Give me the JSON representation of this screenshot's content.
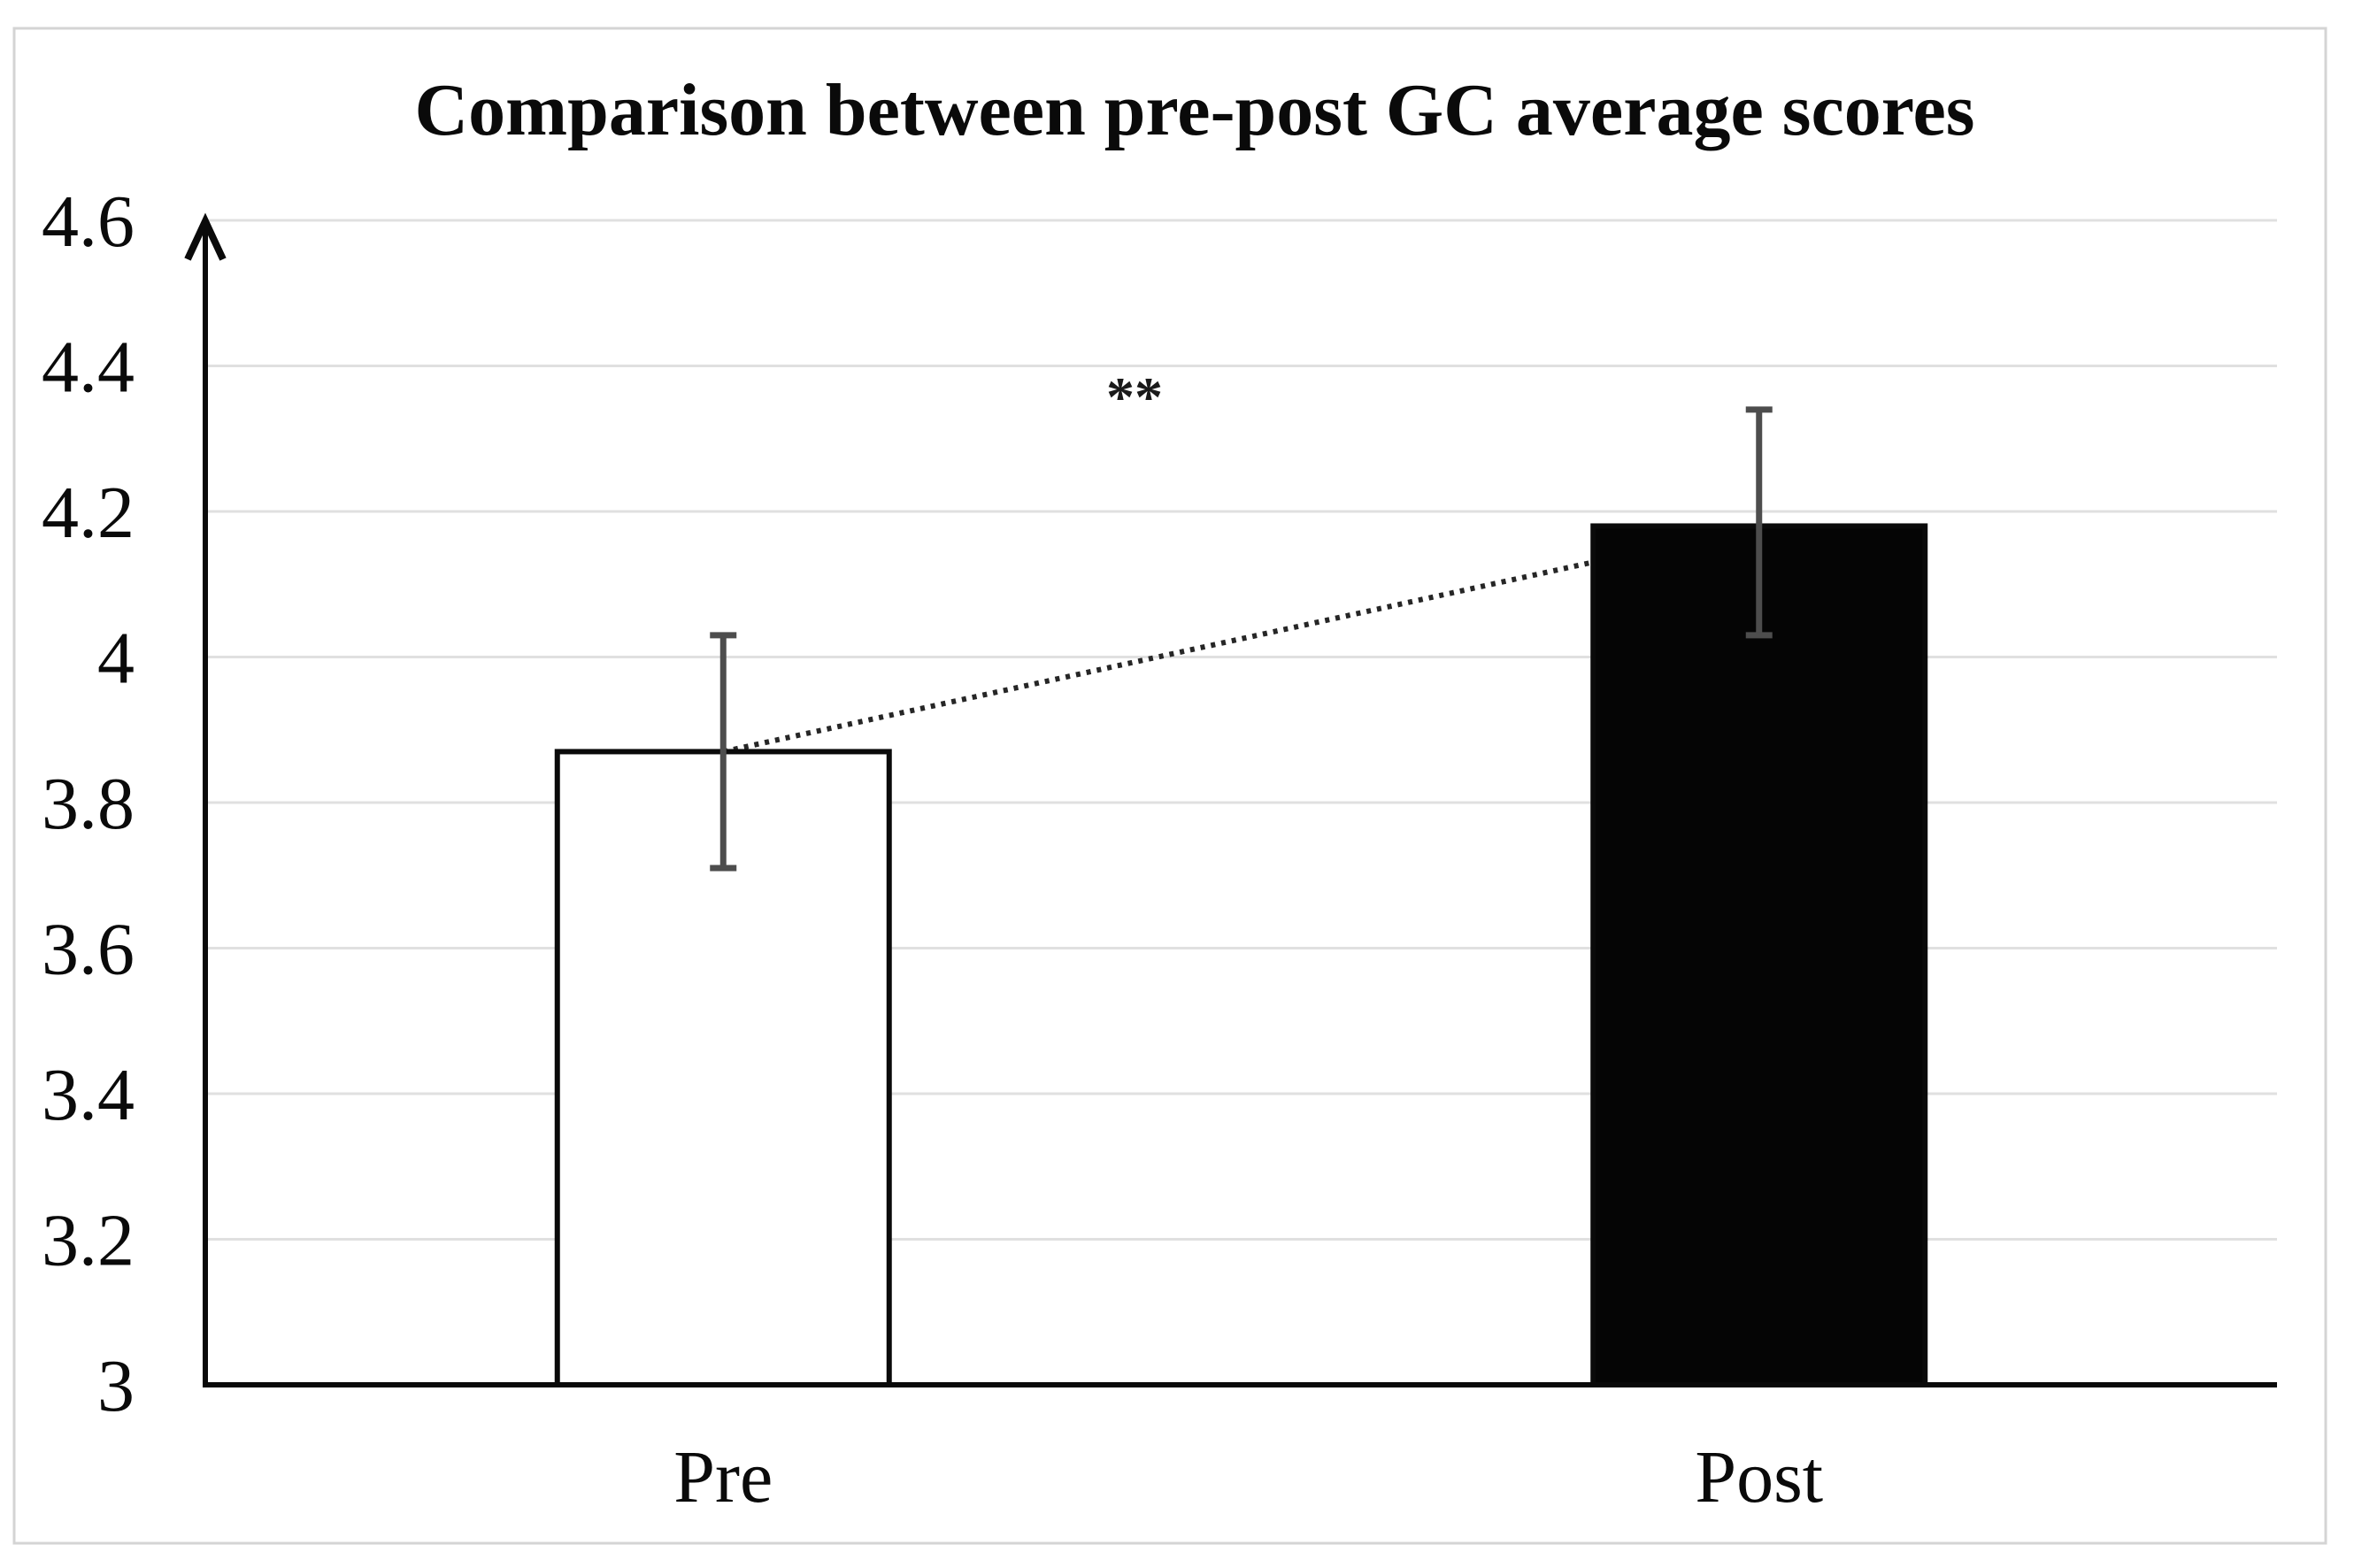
{
  "figure": {
    "background_color": "#ffffff",
    "border_color": "#d4d4d4"
  },
  "chart_data": {
    "type": "bar",
    "title": "Comparison between pre-post GC average scores",
    "categories": [
      "Pre",
      "Post"
    ],
    "series": [
      {
        "name": "GC average score",
        "values": [
          3.87,
          4.18
        ],
        "error_ranges": [
          [
            3.71,
            4.03
          ],
          [
            4.03,
            4.34
          ]
        ],
        "bar_fills": [
          "#ffffff",
          "#050505"
        ],
        "bar_border_color": "#0a0a0a"
      }
    ],
    "ylim": [
      3,
      4.6
    ],
    "y_ticks": [
      "4.6",
      "4.4",
      "4.2",
      "4",
      "3.8",
      "3.6",
      "3.4",
      "3.2",
      "3"
    ],
    "y_tick_values": [
      4.6,
      4.4,
      4.2,
      4,
      3.8,
      3.6,
      3.4,
      3.2,
      3
    ],
    "xlabel": "",
    "ylabel": "",
    "grid": "horizontal",
    "gridline_color": "#e0e0e0",
    "axis_color": "#0a0a0a",
    "error_bar_color": "#4d4d4d",
    "connector_line": {
      "style": "dotted",
      "from_category": "Pre",
      "to_category": "Post",
      "color": "#262626"
    },
    "annotation": {
      "text": "**"
    },
    "legend": "none"
  }
}
